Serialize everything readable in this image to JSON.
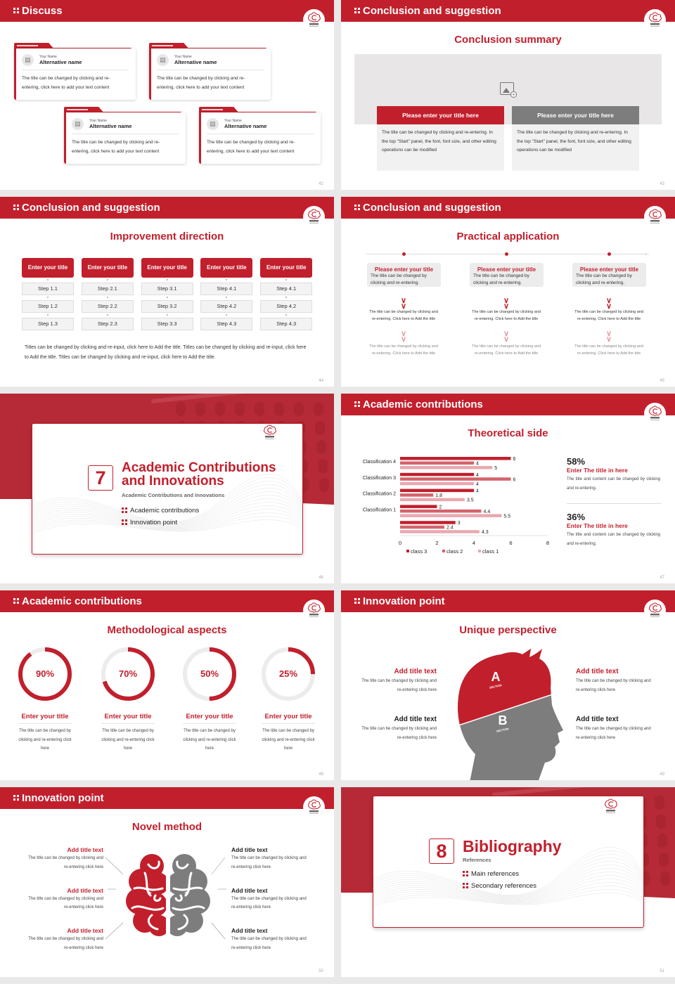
{
  "brand": {
    "primary": "#c21f2c",
    "gray": "#808080",
    "light": "#f1f1f1"
  },
  "logo_text": "中医大学",
  "slides": [
    {
      "page": "42",
      "header": "Discuss",
      "cards": [
        {
          "label": "Your Name",
          "name": "Alternative name",
          "text": "The title can be changed by clicking and re-entering, click here to add your text content"
        },
        {
          "label": "Your Name",
          "name": "Alternative name",
          "text": "The title can be changed by clicking and re-entering, click here to add your text content"
        },
        {
          "label": "Your Name",
          "name": "Alternative name",
          "text": "The title can be changed by clicking and re-entering, click here to add your text content"
        },
        {
          "label": "Your Name",
          "name": "Alternative name",
          "text": "The title can be changed by clicking and re-entering, click here to add your text content"
        }
      ]
    },
    {
      "page": "43",
      "header": "Conclusion and suggestion",
      "title": "Conclusion summary",
      "boxes": [
        {
          "title": "Please enter your title here",
          "text": "The title can be changed by clicking and re-entering. In the top \"Start\" panel, the font, font size, and other editing operations can be modified"
        },
        {
          "title": "Please enter your title here",
          "text": "The title can be changed by clicking and re-entering. In the top \"Start\" panel, the font, font size, and other editing operations can be modified"
        }
      ]
    },
    {
      "page": "44",
      "header": "Conclusion and suggestion",
      "title": "Improvement direction",
      "columns": [
        {
          "title": "Enter your title",
          "steps": [
            "Step 1.1",
            "Step 1.2",
            "Step 1.3"
          ]
        },
        {
          "title": "Enter your title",
          "steps": [
            "Step 2.1",
            "Step 2.2",
            "Step 2.3"
          ]
        },
        {
          "title": "Enter your title",
          "steps": [
            "Step 3.1",
            "Step 3.2",
            "Step 3.3"
          ]
        },
        {
          "title": "Enter your title",
          "steps": [
            "Step 4.1",
            "Step 4.2",
            "Step 4.3"
          ]
        },
        {
          "title": "Enter your title",
          "steps": [
            "Step 4.1",
            "Step 4.2",
            "Step 4.3"
          ]
        }
      ],
      "paragraph": "Titles can be changed by clicking and re-input, click here to Add the title. Titles can be changed by clicking and re-input, click here to Add the title. Titles can be changed by clicking and re-input, click here to Add the title."
    },
    {
      "page": "45",
      "header": "Conclusion and suggestion",
      "title": "Practical application",
      "items": [
        {
          "title": "Please enter your title",
          "text": "The title can be changed by clicking and re-entering.",
          "detail1": "The title can be changed by clicking and re-entering. Click here to Add the title",
          "detail2": "The title can be changed by clicking and re-entering. Click here to Add the title"
        },
        {
          "title": "Please enter your title",
          "text": "The title can be changed by clicking and re-entering.",
          "detail1": "The title can be changed by clicking and re-entering. Click here to Add the title",
          "detail2": "The title can be changed by clicking and re-entering. Click here to Add the title"
        },
        {
          "title": "Please enter your title",
          "text": "The title can be changed by clicking and re-entering.",
          "detail1": "The title can be changed by clicking and re-entering. Click here to Add the title",
          "detail2": "The title can be changed by clicking and re-entering. Click here to Add the title"
        }
      ]
    },
    {
      "page": "46",
      "number": "7",
      "title_line1": "Academic Contributions",
      "title_line2": "and Innovations",
      "subtitle": "Academic Contributions and Innovations",
      "items": [
        "Academic contributions",
        "Innovation point"
      ]
    },
    {
      "page": "47",
      "header": "Academic contributions",
      "title": "Theoretical side",
      "stats": [
        {
          "value": "58%",
          "title": "Enter The title in here",
          "text": "The title and content can be changed by clicking and re-entering."
        },
        {
          "value": "36%",
          "title": "Enter The title in here",
          "text": "The title and content can be changed by clicking and re-entering."
        }
      ]
    },
    {
      "page": "48",
      "header": "Academic contributions",
      "title": "Methodological aspects",
      "gauges": [
        {
          "value": 90,
          "label": "90%",
          "title": "Enter your title",
          "text": "The title can be changed by clicking and re-entering click here"
        },
        {
          "value": 70,
          "label": "70%",
          "title": "Enter your title",
          "text": "The title can be changed by clicking and re-entering click here"
        },
        {
          "value": 50,
          "label": "50%",
          "title": "Enter your title",
          "text": "The title can be changed by clicking and re-entering click here"
        },
        {
          "value": 25,
          "label": "25%",
          "title": "Enter your title",
          "text": "The title can be changed by clicking and re-entering click here"
        }
      ]
    },
    {
      "page": "49",
      "header": "Innovation point",
      "title": "Unique perspective",
      "section_a": "A",
      "section_b": "B",
      "section_label": "SECTION",
      "items": [
        {
          "title": "Add title text",
          "text": "The title can be changed by clicking and re-entering click here"
        },
        {
          "title": "Add title text",
          "text": "The title can be changed by clicking and re-entering click here"
        },
        {
          "title": "Add title text",
          "text": "The title can be changed by clicking and re-entering click here"
        },
        {
          "title": "Add title text",
          "text": "The title can be changed by clicking and re-entering click here"
        }
      ]
    },
    {
      "page": "50",
      "header": "Innovation point",
      "title": "Novel method",
      "items": [
        {
          "title": "Add title text",
          "text": "The title can be changed by clicking and re-entering click here"
        },
        {
          "title": "Add title text",
          "text": "The title can be changed by clicking and re-entering click here"
        },
        {
          "title": "Add title text",
          "text": "The title can be changed by clicking and re-entering click here"
        },
        {
          "title": "Add title text",
          "text": "The title can be changed by clicking and re-entering click here"
        },
        {
          "title": "Add title text",
          "text": "The title can be changed by clicking and re-entering click here"
        },
        {
          "title": "Add title text",
          "text": "The title can be changed by clicking and re-entering click here"
        }
      ]
    },
    {
      "page": "51",
      "number": "8",
      "title": "Bibliography",
      "subtitle": "References",
      "items": [
        "Main references",
        "Secondary references"
      ]
    }
  ],
  "chart_data": {
    "type": "bar",
    "orientation": "horizontal",
    "categories": [
      "Classification 4",
      "Classification 3",
      "Classification 2",
      "Classification 1",
      ""
    ],
    "series": [
      {
        "name": "class 3",
        "color": "#c21f2c",
        "values": [
          6,
          4,
          4,
          2,
          3
        ]
      },
      {
        "name": "class 2",
        "color": "#d4636c",
        "values": [
          4,
          6,
          1.8,
          4.4,
          2.4
        ]
      },
      {
        "name": "class 1",
        "color": "#e8a9ae",
        "values": [
          5,
          4,
          3.5,
          5.5,
          4.3
        ]
      }
    ],
    "xlim": [
      0,
      8
    ],
    "xticks": [
      "0",
      "2",
      "4",
      "6",
      "8"
    ],
    "grid": false,
    "legend": "bottom",
    "data_labels": true
  }
}
